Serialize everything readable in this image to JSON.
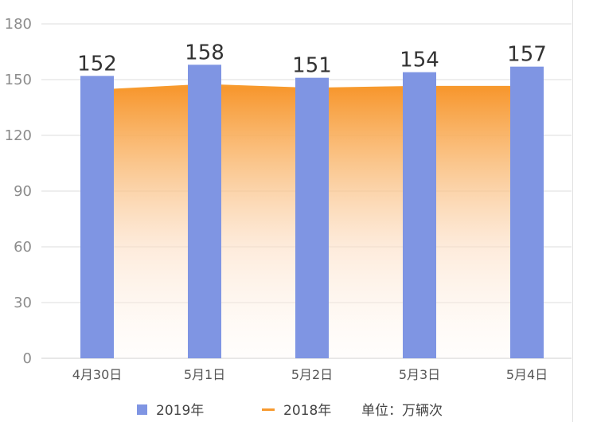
{
  "chart_data": {
    "type": "bar",
    "categories": [
      "4月30日",
      "5月1日",
      "5月2日",
      "5月3日",
      "5月4日"
    ],
    "series": [
      {
        "name": "2019年",
        "type": "bar",
        "values": [
          152,
          158,
          151,
          154,
          157
        ],
        "color": "#7f95e3"
      },
      {
        "name": "2018年",
        "type": "area",
        "values": [
          144,
          147,
          145,
          146,
          146
        ],
        "color": "#f79a2e"
      }
    ],
    "ylim": [
      0,
      180
    ],
    "yticks": [
      0,
      30,
      60,
      90,
      120,
      150,
      180
    ],
    "grid": true,
    "legend_position": "bottom",
    "unit_note": "单位：万辆次",
    "data_labels": true
  }
}
